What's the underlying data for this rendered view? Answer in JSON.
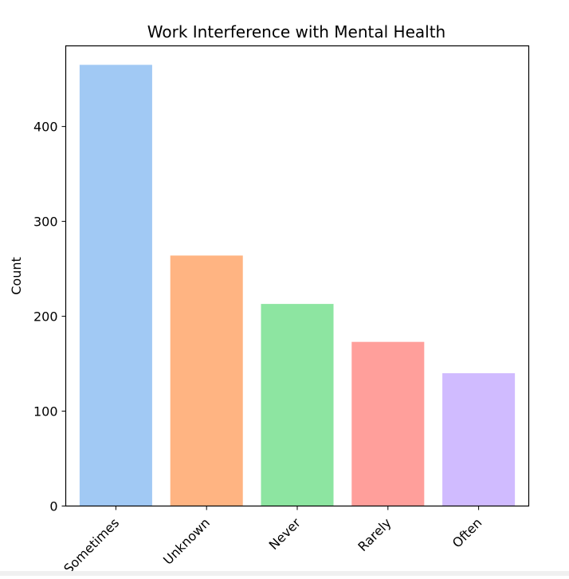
{
  "chart_data": {
    "type": "bar",
    "title": "Work Interference with Mental Health",
    "xlabel": "",
    "ylabel": "Count",
    "categories": [
      "Sometimes",
      "Unknown",
      "Never",
      "Rarely",
      "Often"
    ],
    "values": [
      465,
      264,
      213,
      173,
      140
    ],
    "colors": [
      "#a1c9f4",
      "#ffb482",
      "#8de5a1",
      "#ff9f9b",
      "#d0bbff"
    ],
    "ylim": [
      0,
      485
    ],
    "yticks": [
      0,
      100,
      200,
      300,
      400
    ],
    "grid": false
  }
}
